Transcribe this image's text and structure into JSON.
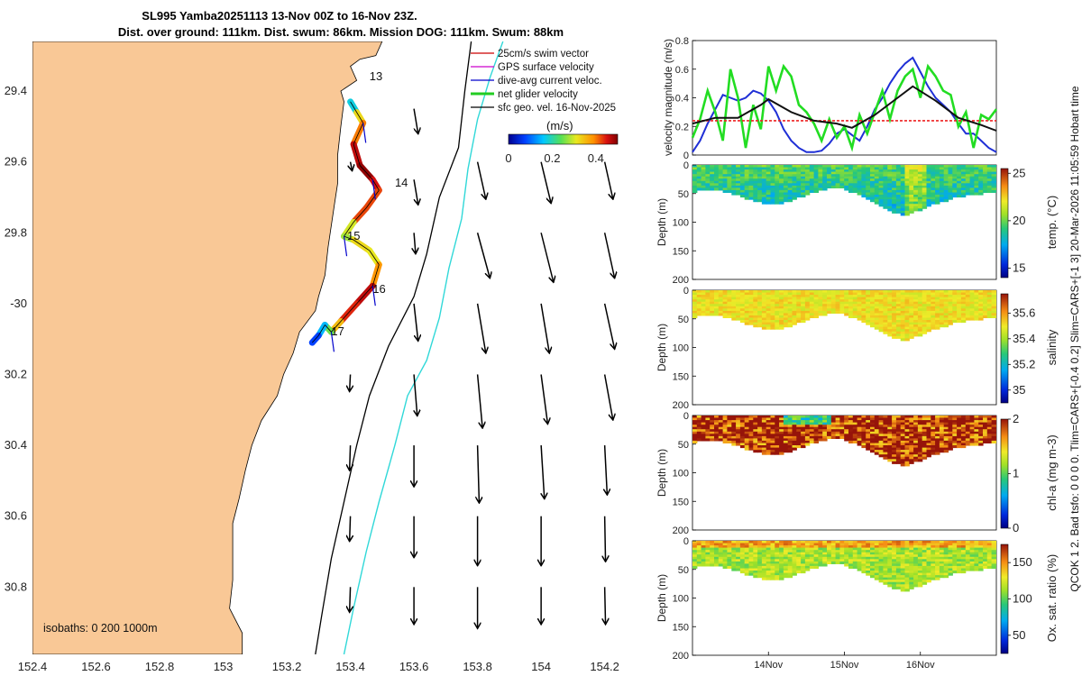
{
  "title": {
    "line1": "SL995 Yamba20251113 13-Nov 00Z to 16-Nov 23Z.",
    "line2": "Dist. over ground: 111km. Dist. swum: 86km. Mission DOG: 111km. Swum: 88km"
  },
  "side_text": "QCOK 1  2. Bad tsfo: 0  0  0  0. Tlim=CARS+[-0.4 0.2] Slim=CARS+[-1 3] 20-Mar-2026 11:05:59 Hobart time",
  "map": {
    "lat_ticks": [
      "29.4",
      "29.6",
      "29.8",
      "-30",
      "30.2",
      "30.4",
      "30.6",
      "30.8"
    ],
    "lon_ticks": [
      "152.4",
      "152.6",
      "152.8",
      "153",
      "153.2",
      "153.4",
      "153.6",
      "153.8",
      "154",
      "154.2"
    ],
    "lon_range": [
      152.4,
      154.34
    ],
    "lat_range": [
      -29.26,
      -30.99
    ],
    "isobaths_label": "isobaths: 0   200   1000m",
    "legend": [
      {
        "label": "25cm/s swim vector",
        "color": "#cc0000"
      },
      {
        "label": "GPS surface velocity",
        "color": "#cc00cc"
      },
      {
        "label": "dive-avg current veloc.",
        "color": "#0000cc"
      },
      {
        "label": "net glider velocity",
        "color": "#22cc22"
      },
      {
        "label": "sfc geo. vel. 16-Nov-2025",
        "color": "#000000"
      }
    ],
    "colorbar": {
      "title": "(m/s)",
      "ticks": [
        "0",
        "0.2",
        "0.4"
      ],
      "range": [
        0,
        0.5
      ]
    },
    "day_labels": [
      {
        "label": "13",
        "lon": 153.46,
        "lat": -29.37
      },
      {
        "label": "14",
        "lon": 153.54,
        "lat": -29.67
      },
      {
        "label": "15",
        "lon": 153.39,
        "lat": -29.82
      },
      {
        "label": "16",
        "lon": 153.47,
        "lat": -29.97
      },
      {
        "label": "17",
        "lon": 153.34,
        "lat": -30.09
      }
    ],
    "track": [
      [
        153.4,
        -29.43,
        0.05
      ],
      [
        153.42,
        -29.46,
        0.3
      ],
      [
        153.44,
        -29.49,
        0.35
      ],
      [
        153.41,
        -29.55,
        0.45
      ],
      [
        153.43,
        -29.61,
        0.48
      ],
      [
        153.47,
        -29.65,
        0.5
      ],
      [
        153.49,
        -29.68,
        0.4
      ],
      [
        153.45,
        -29.73,
        0.45
      ],
      [
        153.41,
        -29.77,
        0.4
      ],
      [
        153.38,
        -29.81,
        0.2
      ],
      [
        153.41,
        -29.82,
        0.35
      ],
      [
        153.46,
        -29.85,
        0.3
      ],
      [
        153.49,
        -29.89,
        0.32
      ],
      [
        153.47,
        -29.95,
        0.45
      ],
      [
        153.42,
        -30.0,
        0.48
      ],
      [
        153.37,
        -30.05,
        0.4
      ],
      [
        153.34,
        -30.08,
        0.3
      ],
      [
        153.32,
        -30.06,
        0.2
      ],
      [
        153.3,
        -30.09,
        0.1
      ],
      [
        153.28,
        -30.11,
        0.05
      ]
    ],
    "geo_vectors": [
      {
        "lon": 153.6,
        "lat": -29.45,
        "u": 0.05,
        "v": -0.3
      },
      {
        "lon": 153.4,
        "lat": -29.6,
        "u": 0.02,
        "v": -0.1
      },
      {
        "lon": 153.6,
        "lat": -29.65,
        "u": 0.05,
        "v": -0.3
      },
      {
        "lon": 153.8,
        "lat": -29.6,
        "u": 0.1,
        "v": -0.45
      },
      {
        "lon": 154.0,
        "lat": -29.6,
        "u": 0.12,
        "v": -0.5
      },
      {
        "lon": 154.2,
        "lat": -29.6,
        "u": 0.1,
        "v": -0.45
      },
      {
        "lon": 153.6,
        "lat": -29.8,
        "u": 0.02,
        "v": -0.25
      },
      {
        "lon": 153.8,
        "lat": -29.8,
        "u": 0.15,
        "v": -0.55
      },
      {
        "lon": 154.0,
        "lat": -29.8,
        "u": 0.15,
        "v": -0.6
      },
      {
        "lon": 154.2,
        "lat": -29.8,
        "u": 0.12,
        "v": -0.55
      },
      {
        "lon": 153.6,
        "lat": -30.0,
        "u": 0.05,
        "v": -0.45
      },
      {
        "lon": 153.8,
        "lat": -30.0,
        "u": 0.1,
        "v": -0.6
      },
      {
        "lon": 154.0,
        "lat": -30.0,
        "u": 0.1,
        "v": -0.6
      },
      {
        "lon": 154.2,
        "lat": -30.0,
        "u": 0.12,
        "v": -0.55
      },
      {
        "lon": 153.4,
        "lat": -30.2,
        "u": -0.01,
        "v": -0.2
      },
      {
        "lon": 153.6,
        "lat": -30.2,
        "u": 0.04,
        "v": -0.5
      },
      {
        "lon": 153.8,
        "lat": -30.2,
        "u": 0.06,
        "v": -0.65
      },
      {
        "lon": 154.0,
        "lat": -30.2,
        "u": 0.08,
        "v": -0.6
      },
      {
        "lon": 154.2,
        "lat": -30.2,
        "u": 0.1,
        "v": -0.55
      },
      {
        "lon": 153.4,
        "lat": -30.4,
        "u": -0.01,
        "v": -0.3
      },
      {
        "lon": 153.6,
        "lat": -30.4,
        "u": 0.0,
        "v": -0.5
      },
      {
        "lon": 153.8,
        "lat": -30.4,
        "u": 0.02,
        "v": -0.7
      },
      {
        "lon": 154.0,
        "lat": -30.4,
        "u": 0.04,
        "v": -0.65
      },
      {
        "lon": 154.2,
        "lat": -30.4,
        "u": 0.03,
        "v": -0.6
      },
      {
        "lon": 153.4,
        "lat": -30.6,
        "u": -0.01,
        "v": -0.3
      },
      {
        "lon": 153.6,
        "lat": -30.6,
        "u": 0.0,
        "v": -0.5
      },
      {
        "lon": 153.8,
        "lat": -30.6,
        "u": 0.0,
        "v": -0.6
      },
      {
        "lon": 154.0,
        "lat": -30.6,
        "u": 0.0,
        "v": -0.6
      },
      {
        "lon": 154.2,
        "lat": -30.6,
        "u": 0.01,
        "v": -0.55
      },
      {
        "lon": 153.4,
        "lat": -30.8,
        "u": -0.01,
        "v": -0.3
      },
      {
        "lon": 153.6,
        "lat": -30.8,
        "u": 0.0,
        "v": -0.45
      },
      {
        "lon": 153.8,
        "lat": -30.8,
        "u": 0.0,
        "v": -0.5
      },
      {
        "lon": 154.0,
        "lat": -30.8,
        "u": 0.0,
        "v": -0.45
      },
      {
        "lon": 154.2,
        "lat": -30.8,
        "u": 0.01,
        "v": -0.45
      }
    ],
    "coastline": [
      [
        153.5,
        -29.26
      ],
      [
        153.48,
        -29.3
      ],
      [
        153.43,
        -29.31
      ],
      [
        153.4,
        -29.33
      ],
      [
        153.42,
        -29.37
      ],
      [
        153.37,
        -29.4
      ],
      [
        153.38,
        -29.43
      ],
      [
        153.37,
        -29.5
      ],
      [
        153.36,
        -29.58
      ],
      [
        153.36,
        -29.66
      ],
      [
        153.35,
        -29.72
      ],
      [
        153.34,
        -29.78
      ],
      [
        153.33,
        -29.84
      ],
      [
        153.32,
        -29.92
      ],
      [
        153.3,
        -29.98
      ],
      [
        153.29,
        -30.02
      ],
      [
        153.24,
        -30.08
      ],
      [
        153.22,
        -30.14
      ],
      [
        153.19,
        -30.2
      ],
      [
        153.17,
        -30.26
      ],
      [
        153.12,
        -30.33
      ],
      [
        153.09,
        -30.4
      ],
      [
        153.07,
        -30.47
      ],
      [
        153.05,
        -30.55
      ],
      [
        153.03,
        -30.62
      ],
      [
        153.03,
        -30.7
      ],
      [
        153.03,
        -30.78
      ],
      [
        153.02,
        -30.86
      ],
      [
        153.06,
        -30.93
      ],
      [
        153.06,
        -30.99
      ]
    ],
    "isobath_200": [
      [
        153.78,
        -29.26
      ],
      [
        153.76,
        -29.4
      ],
      [
        153.74,
        -29.56
      ],
      [
        153.68,
        -29.7
      ],
      [
        153.64,
        -29.86
      ],
      [
        153.6,
        -29.98
      ],
      [
        153.52,
        -30.12
      ],
      [
        153.46,
        -30.26
      ],
      [
        153.42,
        -30.4
      ],
      [
        153.38,
        -30.56
      ],
      [
        153.34,
        -30.72
      ],
      [
        153.31,
        -30.88
      ],
      [
        153.29,
        -30.99
      ]
    ],
    "isobath_1000": [
      [
        153.88,
        -29.26
      ],
      [
        153.84,
        -29.36
      ],
      [
        153.8,
        -29.48
      ],
      [
        153.77,
        -29.62
      ],
      [
        153.75,
        -29.76
      ],
      [
        153.71,
        -29.9
      ],
      [
        153.68,
        -30.04
      ],
      [
        153.64,
        -30.16
      ],
      [
        153.58,
        -30.26
      ],
      [
        153.54,
        -30.4
      ],
      [
        153.49,
        -30.56
      ],
      [
        153.45,
        -30.7
      ],
      [
        153.41,
        -30.86
      ],
      [
        153.38,
        -30.99
      ]
    ]
  },
  "chart_data": [
    {
      "type": "line",
      "title": "",
      "ylabel": "velocity magnitude (m/s)",
      "ylim": [
        0,
        0.8
      ],
      "yticks": [
        "0",
        "0.2",
        "0.4",
        "0.6",
        "0.8"
      ],
      "xlim": [
        13.0,
        17.0
      ],
      "series": [
        {
          "name": "blue",
          "color": "#1f2fd6",
          "x": [
            13.0,
            13.1,
            13.2,
            13.3,
            13.4,
            13.5,
            13.6,
            13.7,
            13.8,
            13.9,
            14.0,
            14.1,
            14.2,
            14.3,
            14.4,
            14.5,
            14.6,
            14.7,
            14.8,
            14.9,
            15.0,
            15.1,
            15.2,
            15.3,
            15.4,
            15.5,
            15.6,
            15.7,
            15.8,
            15.9,
            16.0,
            16.1,
            16.2,
            16.3,
            16.4,
            16.5,
            16.6,
            16.7,
            16.8,
            16.9,
            17.0
          ],
          "y": [
            0.02,
            0.1,
            0.22,
            0.32,
            0.42,
            0.4,
            0.38,
            0.4,
            0.45,
            0.43,
            0.38,
            0.3,
            0.18,
            0.1,
            0.05,
            0.02,
            0.02,
            0.03,
            0.08,
            0.15,
            0.18,
            0.14,
            0.1,
            0.2,
            0.32,
            0.4,
            0.5,
            0.58,
            0.64,
            0.68,
            0.58,
            0.48,
            0.4,
            0.35,
            0.3,
            0.22,
            0.15,
            0.15,
            0.1,
            0.05,
            0.02
          ]
        },
        {
          "name": "green",
          "color": "#22dd22",
          "x": [
            13.0,
            13.1,
            13.2,
            13.3,
            13.4,
            13.5,
            13.6,
            13.7,
            13.8,
            13.9,
            14.0,
            14.1,
            14.2,
            14.3,
            14.4,
            14.5,
            14.6,
            14.7,
            14.8,
            14.9,
            15.0,
            15.1,
            15.2,
            15.3,
            15.4,
            15.5,
            15.6,
            15.7,
            15.8,
            15.9,
            16.0,
            16.1,
            16.2,
            16.3,
            16.4,
            16.5,
            16.6,
            16.7,
            16.8,
            16.9,
            17.0
          ],
          "y": [
            0.12,
            0.25,
            0.45,
            0.3,
            0.1,
            0.6,
            0.4,
            0.05,
            0.35,
            0.18,
            0.62,
            0.45,
            0.62,
            0.55,
            0.35,
            0.3,
            0.22,
            0.1,
            0.25,
            0.12,
            0.2,
            0.05,
            0.28,
            0.15,
            0.3,
            0.45,
            0.25,
            0.45,
            0.55,
            0.6,
            0.4,
            0.62,
            0.55,
            0.45,
            0.42,
            0.2,
            0.3,
            0.05,
            0.28,
            0.25,
            0.32
          ]
        },
        {
          "name": "red",
          "color": "#ee2222",
          "dashed": true,
          "x": [
            13.0,
            17.0
          ],
          "y": [
            0.24,
            0.24
          ]
        },
        {
          "name": "black",
          "color": "#111111",
          "x": [
            13.0,
            13.3,
            13.6,
            13.9,
            14.0,
            14.3,
            14.6,
            14.9,
            15.1,
            15.4,
            15.7,
            15.9,
            16.2,
            16.5,
            16.8,
            17.0
          ],
          "y": [
            0.22,
            0.26,
            0.26,
            0.35,
            0.39,
            0.3,
            0.24,
            0.22,
            0.19,
            0.28,
            0.4,
            0.48,
            0.38,
            0.26,
            0.21,
            0.17
          ]
        }
      ]
    },
    {
      "type": "heatmap",
      "variable": "temp.",
      "ylabel": "Depth (m)",
      "colorbar_label": "temp. (°C)",
      "colorbar_ticks": [
        {
          "label": "15",
          "value": 15
        },
        {
          "label": "20",
          "value": 20
        },
        {
          "label": "25",
          "value": 25
        }
      ],
      "range": [
        14,
        25.5
      ],
      "yticks": [
        "0",
        "50",
        "100",
        "150",
        "200"
      ],
      "ylim": [
        0,
        200
      ],
      "base_value": 19.6,
      "noise": 1.2,
      "bottom_depth": [
        45,
        40,
        42,
        48,
        55,
        62,
        68,
        66,
        58,
        50,
        42,
        38,
        40,
        48,
        58,
        70,
        82,
        85,
        78,
        68,
        62,
        55,
        50,
        48,
        46
      ]
    },
    {
      "type": "heatmap",
      "variable": "salinity",
      "ylabel": "Depth (m)",
      "colorbar_label": "salinity",
      "colorbar_ticks": [
        {
          "label": "35",
          "value": 35.0
        },
        {
          "label": "35.2",
          "value": 35.2
        },
        {
          "label": "35.4",
          "value": 35.4
        },
        {
          "label": "35.6",
          "value": 35.6
        }
      ],
      "range": [
        34.9,
        35.75
      ],
      "yticks": [
        "0",
        "50",
        "100",
        "150",
        "200"
      ],
      "ylim": [
        0,
        200
      ],
      "base_value": 35.5,
      "noise": 0.06,
      "bottom_depth": [
        45,
        40,
        42,
        48,
        55,
        62,
        68,
        66,
        58,
        50,
        42,
        38,
        40,
        48,
        58,
        70,
        82,
        85,
        78,
        68,
        62,
        55,
        50,
        48,
        46
      ]
    },
    {
      "type": "heatmap",
      "variable": "chl-a",
      "ylabel": "Depth (m)",
      "colorbar_label": "chl-a (mg m-3)",
      "colorbar_ticks": [
        {
          "label": "0",
          "value": 0
        },
        {
          "label": "1",
          "value": 1
        },
        {
          "label": "2",
          "value": 2
        }
      ],
      "range": [
        0,
        2
      ],
      "yticks": [
        "0",
        "50",
        "100",
        "150",
        "200"
      ],
      "ylim": [
        0,
        200
      ],
      "base_value": 1.95,
      "noise": 0.5,
      "bottom_depth": [
        45,
        40,
        42,
        48,
        55,
        62,
        68,
        66,
        58,
        50,
        42,
        38,
        40,
        48,
        58,
        70,
        82,
        85,
        78,
        68,
        62,
        55,
        50,
        48,
        46
      ]
    },
    {
      "type": "heatmap",
      "variable": "ox",
      "ylabel": "Depth (m)",
      "colorbar_label": "Ox. sat. ratio (%)",
      "colorbar_ticks": [
        {
          "label": "50",
          "value": 50
        },
        {
          "label": "100",
          "value": 100
        },
        {
          "label": "150",
          "value": 150
        }
      ],
      "range": [
        25,
        175
      ],
      "yticks": [
        "0",
        "50",
        "100",
        "150",
        "200"
      ],
      "ylim": [
        0,
        200
      ],
      "base_value": 115,
      "noise": 15,
      "bottom_depth": [
        45,
        40,
        42,
        48,
        55,
        62,
        68,
        66,
        58,
        50,
        42,
        38,
        40,
        48,
        58,
        70,
        82,
        85,
        78,
        68,
        62,
        55,
        50,
        48,
        46
      ]
    }
  ],
  "time_axis": {
    "xlim": [
      13.0,
      17.0
    ],
    "ticks": [
      {
        "label": "14Nov",
        "value": 14.0
      },
      {
        "label": "15Nov",
        "value": 15.0
      },
      {
        "label": "16Nov",
        "value": 16.0
      }
    ]
  }
}
